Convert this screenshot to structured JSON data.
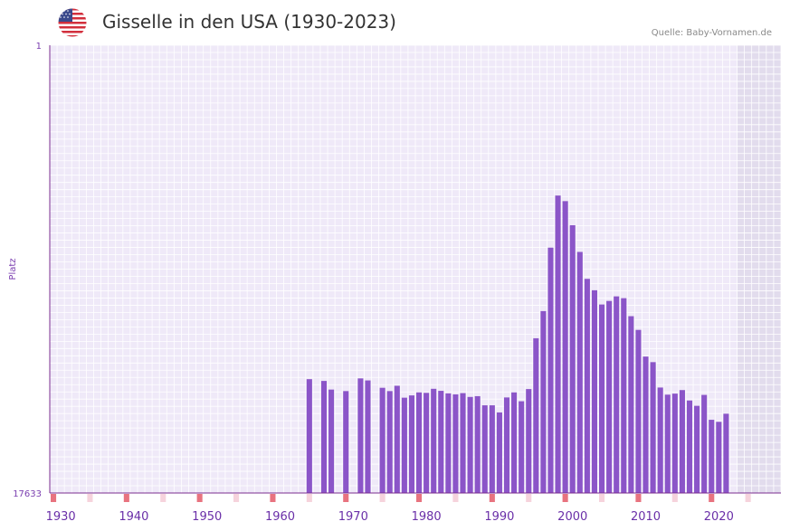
{
  "header": {
    "title": "Gisselle in den USA (1930-2023)",
    "source": "Quelle: Baby-Vornamen.de"
  },
  "colors": {
    "bar": "#8b55c8",
    "grid_bg": "#efe9f8",
    "grid_line": "#ffffff",
    "shade": "#e2dced",
    "axis": "#7b2d8f",
    "decade_marker": "#e8737f",
    "half_marker": "#f6d3dc"
  },
  "chart_data": {
    "type": "bar",
    "title": "Gisselle in den USA (1930-2023)",
    "xlabel": "",
    "ylabel": "Platz",
    "y_axis_inverted": true,
    "ylim": [
      1,
      17633
    ],
    "ytick_labels": [
      "1",
      "17633"
    ],
    "xlim": [
      1929,
      2029
    ],
    "xtick_labels": [
      "1930",
      "1940",
      "1950",
      "1960",
      "1970",
      "1980",
      "1990",
      "2000",
      "2010",
      "2020"
    ],
    "shaded_from_year": 2023,
    "years": [
      1964,
      1966,
      1967,
      1969,
      1971,
      1972,
      1974,
      1975,
      1976,
      1977,
      1978,
      1979,
      1980,
      1981,
      1982,
      1983,
      1984,
      1985,
      1986,
      1987,
      1988,
      1989,
      1990,
      1991,
      1992,
      1993,
      1994,
      1995,
      1996,
      1997,
      1998,
      1999,
      2000,
      2001,
      2002,
      2003,
      2004,
      2005,
      2006,
      2007,
      2008,
      2009,
      2010,
      2011,
      2012,
      2013,
      2014,
      2015,
      2016,
      2017,
      2018,
      2019,
      2020,
      2021
    ],
    "ranks": [
      13150,
      13220,
      13560,
      13620,
      13120,
      13200,
      13490,
      13620,
      13410,
      13880,
      13790,
      13670,
      13690,
      13530,
      13610,
      13710,
      13750,
      13700,
      13850,
      13820,
      14180,
      14180,
      14460,
      13870,
      13670,
      14020,
      13540,
      11540,
      10470,
      7970,
      5920,
      6140,
      7090,
      8140,
      9200,
      9650,
      10210,
      10070,
      9890,
      9960,
      10670,
      11210,
      12260,
      12480,
      13480,
      13760,
      13720,
      13580,
      13990,
      14200,
      13770,
      14750,
      14830,
      14510
    ]
  }
}
